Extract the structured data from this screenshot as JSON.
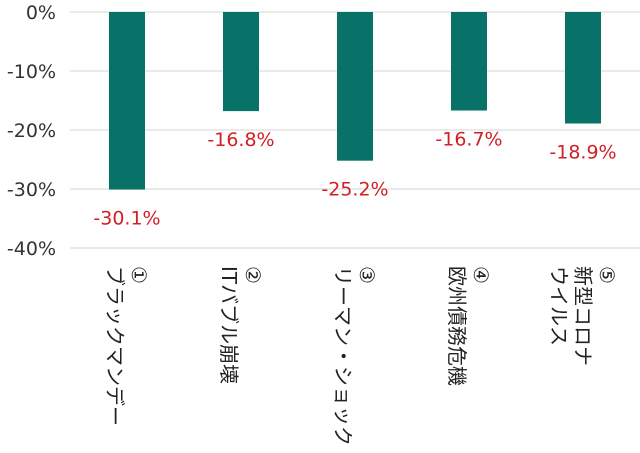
{
  "chart_data": {
    "type": "bar",
    "categories": [
      [
        "①",
        "ブラックマンデー"
      ],
      [
        "②",
        "ITバブル崩壊"
      ],
      [
        "③",
        "リーマン・ショック"
      ],
      [
        "④",
        "欧州債務危機"
      ],
      [
        "⑤",
        "新型コロナ",
        "ウイルス"
      ]
    ],
    "values": [
      -30.1,
      -16.8,
      -25.2,
      -16.7,
      -18.9
    ],
    "data_labels": [
      "-30.1%",
      "-16.8%",
      "-25.2%",
      "-16.7%",
      "-18.9%"
    ],
    "y_ticks": [
      0,
      -10,
      -20,
      -30,
      -40
    ],
    "y_tick_labels": [
      "0%",
      "-10%",
      "-20%",
      "-30%",
      "-40%"
    ],
    "ylim": [
      -40,
      0
    ],
    "grid": true,
    "legend": "none",
    "colors": {
      "bar": "#087168",
      "data_label": "#d21f25",
      "grid": "#d4d4d4"
    }
  }
}
